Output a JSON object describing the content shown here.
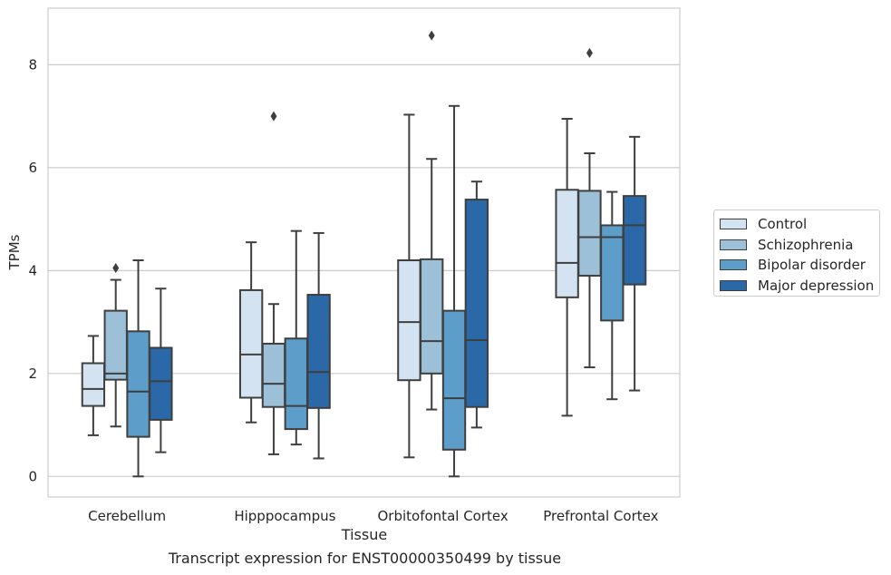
{
  "chart_data": {
    "type": "box",
    "xlabel": "Tissue",
    "ylabel": "TPMs",
    "caption": "Transcript expression for ENST00000350499 by tissue",
    "ylim": [
      -0.4,
      9.1
    ],
    "yticks": [
      0,
      2,
      4,
      6,
      8
    ],
    "grid": "horizontal",
    "legend_position": "right",
    "categories": [
      "Cerebellum",
      "Hipppocampus",
      "Orbitofontal Cortex",
      "Prefrontal Cortex"
    ],
    "series": [
      {
        "name": "Control",
        "color": "#d3e3f1",
        "boxes": [
          {
            "whisker_low": 0.8,
            "q1": 1.37,
            "median": 1.7,
            "q3": 2.2,
            "whisker_high": 2.73,
            "outliers": []
          },
          {
            "whisker_low": 1.05,
            "q1": 1.53,
            "median": 2.37,
            "q3": 3.62,
            "whisker_high": 4.55,
            "outliers": []
          },
          {
            "whisker_low": 0.37,
            "q1": 1.87,
            "median": 3.0,
            "q3": 4.2,
            "whisker_high": 7.03,
            "outliers": []
          },
          {
            "whisker_low": 1.18,
            "q1": 3.48,
            "median": 4.15,
            "q3": 5.57,
            "whisker_high": 6.95,
            "outliers": []
          }
        ]
      },
      {
        "name": "Schizophrenia",
        "color": "#9bc0d8",
        "boxes": [
          {
            "whisker_low": 0.97,
            "q1": 1.88,
            "median": 2.0,
            "q3": 3.22,
            "whisker_high": 3.82,
            "outliers": [
              4.05
            ]
          },
          {
            "whisker_low": 0.43,
            "q1": 1.35,
            "median": 1.8,
            "q3": 2.58,
            "whisker_high": 3.35,
            "outliers": [
              7.0
            ]
          },
          {
            "whisker_low": 1.3,
            "q1": 2.0,
            "median": 2.63,
            "q3": 4.22,
            "whisker_high": 6.17,
            "outliers": [
              8.57
            ]
          },
          {
            "whisker_low": 2.12,
            "q1": 3.9,
            "median": 4.65,
            "q3": 5.55,
            "whisker_high": 6.28,
            "outliers": [
              8.23
            ]
          }
        ]
      },
      {
        "name": "Bipolar disorder",
        "color": "#5d9dc9",
        "boxes": [
          {
            "whisker_low": 0.0,
            "q1": 0.77,
            "median": 1.65,
            "q3": 2.82,
            "whisker_high": 4.2,
            "outliers": []
          },
          {
            "whisker_low": 0.62,
            "q1": 0.92,
            "median": 1.37,
            "q3": 2.68,
            "whisker_high": 4.77,
            "outliers": []
          },
          {
            "whisker_low": 0.0,
            "q1": 0.52,
            "median": 1.52,
            "q3": 3.22,
            "whisker_high": 7.2,
            "outliers": []
          },
          {
            "whisker_low": 1.5,
            "q1": 3.03,
            "median": 4.65,
            "q3": 4.88,
            "whisker_high": 5.53,
            "outliers": []
          }
        ]
      },
      {
        "name": "Major depression",
        "color": "#2a68a8",
        "boxes": [
          {
            "whisker_low": 0.47,
            "q1": 1.1,
            "median": 1.85,
            "q3": 2.5,
            "whisker_high": 3.65,
            "outliers": []
          },
          {
            "whisker_low": 0.35,
            "q1": 1.33,
            "median": 2.03,
            "q3": 3.53,
            "whisker_high": 4.73,
            "outliers": []
          },
          {
            "whisker_low": 0.95,
            "q1": 1.35,
            "median": 2.65,
            "q3": 5.38,
            "whisker_high": 5.73,
            "outliers": []
          },
          {
            "whisker_low": 1.67,
            "q1": 3.73,
            "median": 4.88,
            "q3": 5.45,
            "whisker_high": 6.6,
            "outliers": []
          }
        ]
      }
    ]
  }
}
